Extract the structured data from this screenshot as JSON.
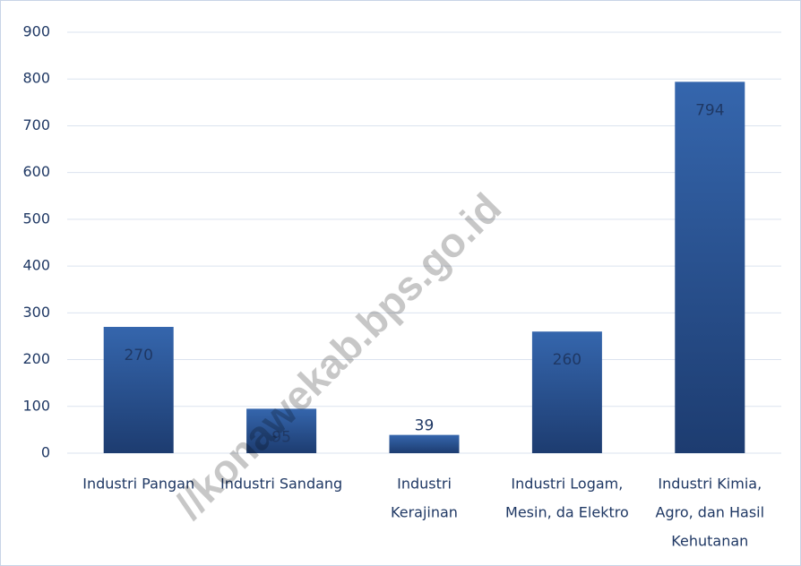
{
  "chart_data": {
    "type": "bar",
    "categories": [
      [
        "Industri Pangan"
      ],
      [
        "Industri Sandang"
      ],
      [
        "Industri",
        "Kerajinan"
      ],
      [
        "Industri Logam,",
        "Mesin, da Elektro"
      ],
      [
        "Industri Kimia,",
        "Agro, dan Hasil",
        "Kehutanan"
      ]
    ],
    "values": [
      270,
      95,
      39,
      260,
      794
    ],
    "color": "#2a5699",
    "ylim": [
      0,
      900
    ],
    "yticks": [
      0,
      100,
      200,
      300,
      400,
      500,
      600,
      700,
      800,
      900
    ],
    "grid": true,
    "watermark": "//konawekab.bps.go.id"
  }
}
